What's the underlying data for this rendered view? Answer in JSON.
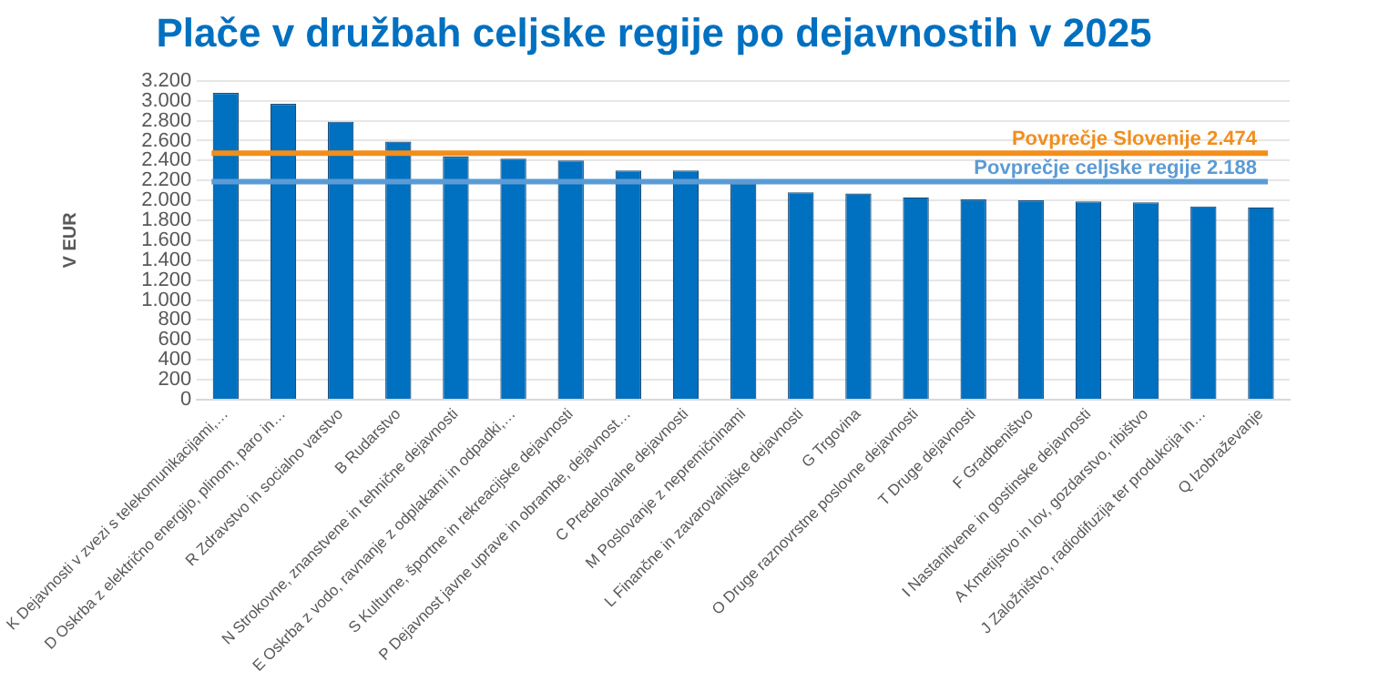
{
  "chart_data": {
    "type": "bar",
    "title": "Plače v družbah celjske regije po dejavnostih v 2025",
    "ylabel": "V EUR",
    "categories": [
      "K Dejavnosti v zvezi s telekomunikacijami,…",
      "D Oskrba z električno energijo, plinom, paro in…",
      "R Zdravstvo in socialno varstvo",
      "B Rudarstvo",
      "N Strokovne, znanstvene in tehnične dejavnosti",
      "E Oskrba z vodo, ravnanje z odplakami in odpadki,…",
      "S Kulturne, športne in rekreacijske dejavnosti",
      "P Dejavnost javne uprave in obrambe, dejavnost…",
      "C Predelovalne dejavnosti",
      "M Poslovanje z nepremičninami",
      "L Finančne in zavarovalniške dejavnosti",
      "G Trgovina",
      "O Druge raznovrstne poslovne dejavnosti",
      "T Druge dejavnosti",
      "F Gradbeništvo",
      "I Nastanitvene in gostinske dejavnosti",
      "A Kmetijstvo in lov, gozdarstvo, ribištvo",
      "J Založništvo, radiodifuzija ter produkcija in…",
      "Q Izobraževanje"
    ],
    "values": [
      3080,
      2970,
      2790,
      2590,
      2440,
      2420,
      2400,
      2300,
      2300,
      2170,
      2080,
      2070,
      2030,
      2010,
      2000,
      1990,
      1980,
      1940,
      1930
    ],
    "color": "#0070c0",
    "ylim": [
      0,
      3200
    ],
    "yticks": [
      {
        "value": 0,
        "label": "0"
      },
      {
        "value": 200,
        "label": "200"
      },
      {
        "value": 400,
        "label": "400"
      },
      {
        "value": 600,
        "label": "600"
      },
      {
        "value": 800,
        "label": "800"
      },
      {
        "value": 1000,
        "label": "1.000"
      },
      {
        "value": 1200,
        "label": "1.200"
      },
      {
        "value": 1400,
        "label": "1.400"
      },
      {
        "value": 1600,
        "label": "1.600"
      },
      {
        "value": 1800,
        "label": "1.800"
      },
      {
        "value": 2000,
        "label": "2.000"
      },
      {
        "value": 2200,
        "label": "2.200"
      },
      {
        "value": 2400,
        "label": "2.400"
      },
      {
        "value": 2600,
        "label": "2.600"
      },
      {
        "value": 2800,
        "label": "2.800"
      },
      {
        "value": 3000,
        "label": "3.000"
      },
      {
        "value": 3200,
        "label": "3.200"
      }
    ],
    "grid": "y",
    "ref_lines": [
      {
        "axis": "y",
        "value": 2474,
        "label": "Povprečje Slovenije 2.474",
        "color": "#f28e1c"
      },
      {
        "axis": "y",
        "value": 2188,
        "label": "Povprečje celjske regije 2.188",
        "color": "#5b9bd5"
      }
    ]
  }
}
